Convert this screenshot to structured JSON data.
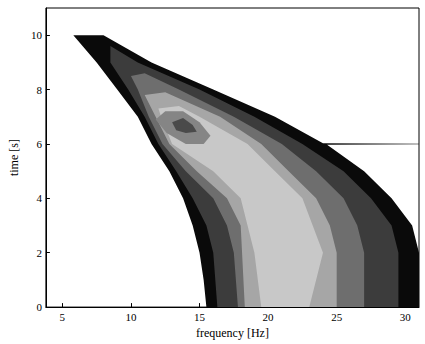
{
  "chart_data": {
    "type": "contour",
    "x_label": "frequency [Hz]",
    "y_label": "time [s]",
    "xlim": [
      3.8,
      31
    ],
    "xticks": [
      5,
      10,
      15,
      20,
      25,
      30
    ],
    "ylim": [
      0,
      11
    ],
    "yticks": [
      0,
      2,
      4,
      6,
      8,
      10
    ],
    "grid": false,
    "series": [
      {
        "color": "#0a0a0a",
        "x": [
          5.8,
          7.5,
          9,
          10.5,
          11.5,
          12.8,
          13.8,
          14.5,
          15,
          15.3,
          15.5,
          31,
          31,
          30.5,
          29,
          27,
          24.3,
          31,
          31,
          24,
          20.5,
          16,
          11.5,
          8
        ],
        "y": [
          10.0,
          9,
          8,
          7,
          6,
          5,
          4,
          3,
          2,
          1,
          0,
          0,
          2,
          3,
          4,
          5,
          5.97,
          5.99,
          6.01,
          6.03,
          7,
          8,
          9,
          10.0
        ]
      },
      {
        "color": "#3c3c3c",
        "x": [
          8.5,
          9.8,
          11,
          12,
          13.3,
          14.5,
          15.5,
          16,
          16.3,
          29.5,
          29.5,
          29,
          27.5,
          25.5,
          22.5,
          19,
          15,
          10.5,
          8.5
        ],
        "y": [
          9,
          8,
          7,
          6,
          5,
          4,
          3,
          2,
          0,
          0,
          2,
          3,
          4,
          5,
          6,
          7,
          8,
          9,
          9.6
        ]
      },
      {
        "color": "#6e6e6e",
        "x": [
          10,
          10.5,
          11.3,
          12.3,
          14,
          16,
          17,
          17.5,
          17.8,
          27,
          27,
          26.5,
          25.5,
          23.5,
          21,
          17.5,
          13.5,
          11
        ],
        "y": [
          8.5,
          8,
          7,
          6,
          5,
          4,
          3,
          2,
          0,
          0,
          2,
          3,
          4,
          5,
          6,
          7,
          8,
          8.6
        ]
      },
      {
        "color": "#a6a6a6",
        "x": [
          11,
          11.8,
          12.8,
          14.8,
          17,
          18,
          18.3,
          25,
          25,
          24.5,
          23.5,
          21.5,
          19.5,
          16.5,
          12.5
        ],
        "y": [
          7.8,
          7,
          6,
          5,
          4,
          3,
          0,
          0,
          2,
          3,
          4,
          5,
          6,
          7,
          7.9
        ]
      },
      {
        "color": "#c8c8c8",
        "x": [
          12,
          12.2,
          13,
          16,
          18,
          19,
          19.5,
          23,
          24,
          22.5,
          20.5,
          18.5,
          15,
          13.5
        ],
        "y": [
          7.3,
          7,
          6,
          5,
          4,
          2,
          0,
          0,
          2,
          4,
          5,
          6,
          7,
          7.4
        ]
      },
      {
        "color": "#858585",
        "x": [
          11.8,
          12.5,
          13.8,
          15,
          15.8,
          15.3,
          14,
          12.6
        ],
        "y": [
          6.9,
          7.2,
          7.2,
          6.8,
          6.3,
          6.0,
          6.0,
          6.4
        ]
      },
      {
        "color": "#4a4a4a",
        "x": [
          13,
          13.8,
          14.5,
          14.8,
          14,
          13.3
        ],
        "y": [
          6.8,
          6.95,
          6.7,
          6.45,
          6.4,
          6.5
        ]
      }
    ]
  }
}
